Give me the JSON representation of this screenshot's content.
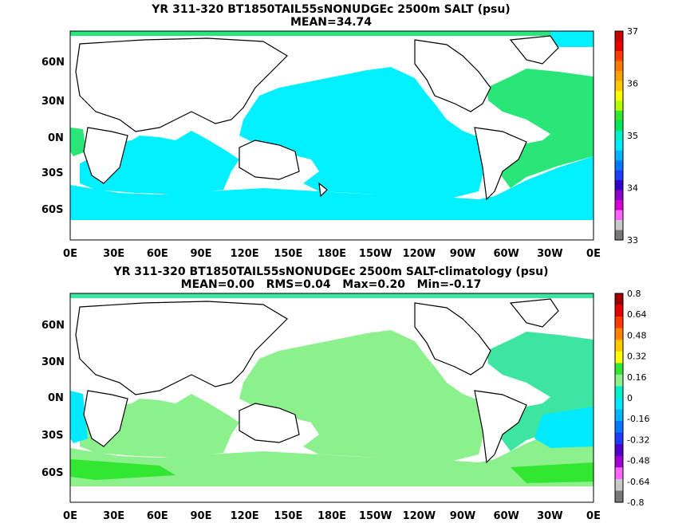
{
  "panels": [
    {
      "title_line1": "YR 311-320 BT1850TAIL55sNONUDGEc 2500m SALT (psu)",
      "title_line2": "MEAN=34.74",
      "colorbar_labels": [
        "37",
        "36",
        "35",
        "34",
        "33"
      ],
      "colorbar_colors": [
        "#c80000",
        "#e80000",
        "#ff3c00",
        "#ff7800",
        "#ffa000",
        "#ffc800",
        "#ffff00",
        "#b4ff00",
        "#32e632",
        "#00e65a",
        "#00f0c8",
        "#00eaff",
        "#00b4ff",
        "#0078ff",
        "#1e3cff",
        "#3200c8",
        "#8c00c8",
        "#d200d2",
        "#ff64ff",
        "#c8c8c8",
        "#787878"
      ]
    },
    {
      "title_line1": "YR 311-320 BT1850TAIL55sNONUDGEc 2500m SALT-climatology (psu)",
      "title_line2": "MEAN=0.00   RMS=0.04   Max=0.20   Min=-0.17",
      "colorbar_labels": [
        "0.8",
        "0.64",
        "0.48",
        "0.32",
        "0.16",
        "0",
        "-0.16",
        "-0.32",
        "-0.48",
        "-0.64",
        "-0.8"
      ],
      "colorbar_colors": [
        "#a00000",
        "#e60000",
        "#ff3c00",
        "#ff8200",
        "#ffc800",
        "#ffff00",
        "#32e632",
        "#8cf08c",
        "#00f0c8",
        "#00eaff",
        "#00b4ff",
        "#0078ff",
        "#1e3cff",
        "#5000c8",
        "#a000d2",
        "#ff64ff",
        "#c8c8c8",
        "#787878"
      ]
    }
  ],
  "y_tick_labels": [
    "60N",
    "30N",
    "0N",
    "30S",
    "60S"
  ],
  "x_tick_labels": [
    "0E",
    "30E",
    "60E",
    "90E",
    "120E",
    "150E",
    "180E",
    "150W",
    "120W",
    "90W",
    "60W",
    "30W",
    "0E"
  ],
  "colors": {
    "panel1_ocean": "#00f0ff",
    "panel1_atlantic": "#28e678",
    "panel2_ocean": "#8cf08c",
    "panel2_cyan": "#00eaff",
    "panel2_teal": "#3ce6a0",
    "panel2_green": "#32e632",
    "land": "#ffffff"
  }
}
